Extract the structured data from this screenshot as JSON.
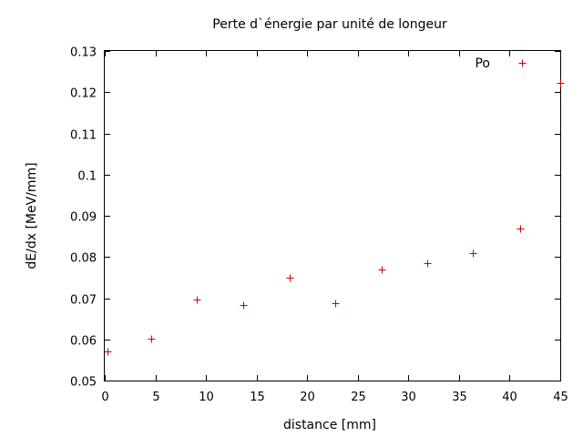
{
  "chart_data": {
    "type": "scatter",
    "title": "Perte d`énergie par unité de longeur",
    "xlabel": "distance [mm]",
    "ylabel": "dE/dx [MeV/mm]",
    "xlim": [
      0,
      45
    ],
    "ylim": [
      0.05,
      0.13
    ],
    "x_ticks": [
      "0",
      "5",
      "10",
      "15",
      "20",
      "25",
      "30",
      "35",
      "40",
      "45"
    ],
    "y_ticks": [
      "0.05",
      "0.06",
      "0.07",
      "0.08",
      "0.09",
      "0.1",
      "0.11",
      "0.12",
      "0.13"
    ],
    "grid": false,
    "legend_position": "top-right",
    "marker": "+",
    "color": "#cc0000",
    "series": [
      {
        "name": "Po",
        "points": [
          {
            "x": 0.3,
            "y": 0.0571
          },
          {
            "x": 4.6,
            "y": 0.0601
          },
          {
            "x": 9.1,
            "y": 0.0696
          },
          {
            "x": 13.7,
            "y": 0.0683
          },
          {
            "x": 18.3,
            "y": 0.075
          },
          {
            "x": 22.8,
            "y": 0.0688
          },
          {
            "x": 27.4,
            "y": 0.077
          },
          {
            "x": 31.9,
            "y": 0.0785
          },
          {
            "x": 36.4,
            "y": 0.081
          },
          {
            "x": 41.0,
            "y": 0.0868
          },
          {
            "x": 45.0,
            "y": 0.1223
          }
        ]
      }
    ]
  }
}
